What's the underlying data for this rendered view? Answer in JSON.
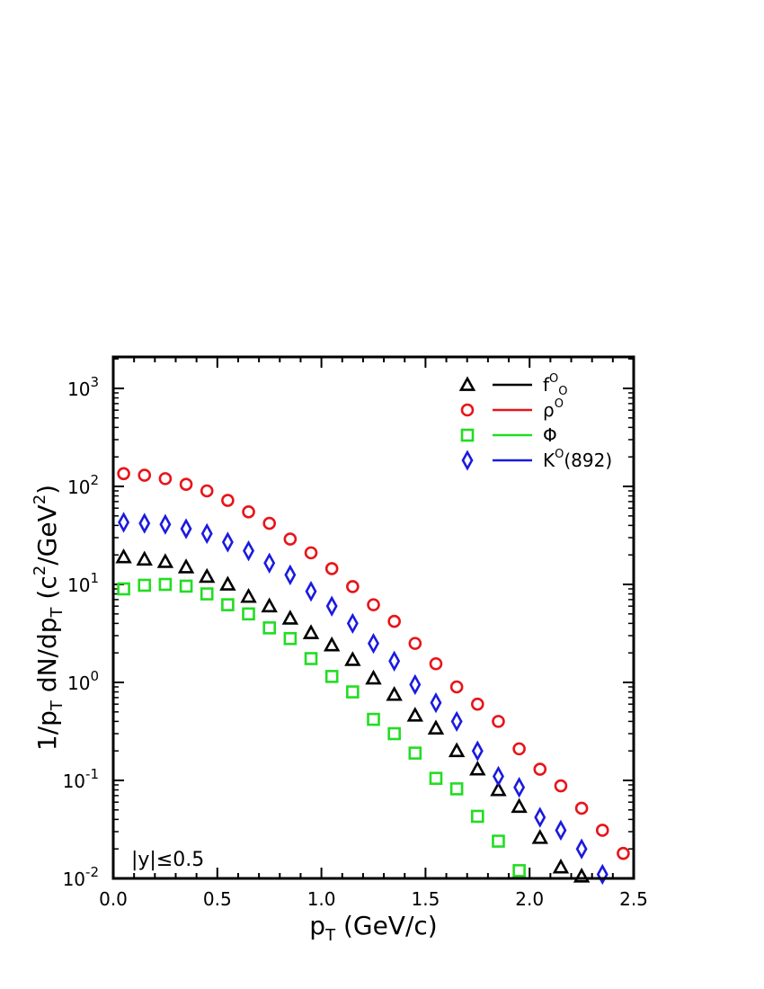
{
  "chart_data": {
    "type": "scatter",
    "xlabel": "p_T (GeV/c)",
    "ylabel": "1/p_T dN/dp_T (c^2/GeV^2)",
    "xlim": [
      0,
      2.5
    ],
    "ylim": [
      0.01,
      2000
    ],
    "yscale": "log",
    "x_ticks": [
      "0.0",
      "0.5",
      "1.0",
      "1.5",
      "2.0",
      "2.5"
    ],
    "y_ticks": [
      {
        "base": "10",
        "exp": "-2"
      },
      {
        "base": "10",
        "exp": "-1"
      },
      {
        "base": "10",
        "exp": "0"
      },
      {
        "base": "10",
        "exp": "1"
      },
      {
        "base": "10",
        "exp": "2"
      },
      {
        "base": "10",
        "exp": "3"
      }
    ],
    "annotation": "|y|≤0.5",
    "legend_position": "top-right",
    "series": [
      {
        "name": "f0",
        "name_base": "f",
        "name_sup": "O",
        "name_sub": "O",
        "marker": "triangle",
        "color": "#000000",
        "x": [
          0.05,
          0.15,
          0.25,
          0.35,
          0.45,
          0.55,
          0.65,
          0.75,
          0.85,
          0.95,
          1.05,
          1.15,
          1.25,
          1.35,
          1.45,
          1.55,
          1.65,
          1.75,
          1.85,
          1.95,
          2.05,
          2.15,
          2.25
        ],
        "y": [
          19,
          18,
          17,
          15,
          12,
          10,
          7.5,
          6,
          4.5,
          3.2,
          2.4,
          1.7,
          1.1,
          0.75,
          0.46,
          0.34,
          0.2,
          0.13,
          0.08,
          0.054,
          0.026,
          0.013,
          0.0105
        ]
      },
      {
        "name": "ρ0",
        "name_base": "ρ",
        "name_sup": "O",
        "name_sub": "",
        "marker": "circle",
        "color": "#e8141a",
        "x": [
          0.05,
          0.15,
          0.25,
          0.35,
          0.45,
          0.55,
          0.65,
          0.75,
          0.85,
          0.95,
          1.05,
          1.15,
          1.25,
          1.35,
          1.45,
          1.55,
          1.65,
          1.75,
          1.85,
          1.95,
          2.05,
          2.15,
          2.25,
          2.35,
          2.45
        ],
        "y": [
          135,
          130,
          120,
          105,
          90,
          72,
          55,
          42,
          29,
          21,
          14.5,
          9.5,
          6.2,
          4.2,
          2.5,
          1.55,
          0.9,
          0.6,
          0.4,
          0.21,
          0.13,
          0.088,
          0.052,
          0.031,
          0.018
        ]
      },
      {
        "name": "Φ",
        "name_base": "Φ",
        "name_sup": "",
        "name_sub": "",
        "marker": "square",
        "color": "#22dd22",
        "x": [
          0.05,
          0.15,
          0.25,
          0.35,
          0.45,
          0.55,
          0.65,
          0.75,
          0.85,
          0.95,
          1.05,
          1.15,
          1.25,
          1.35,
          1.45,
          1.55,
          1.65,
          1.75,
          1.85,
          1.95
        ],
        "y": [
          9,
          9.8,
          10,
          9.6,
          8,
          6.2,
          5,
          3.6,
          2.8,
          1.75,
          1.15,
          0.8,
          0.42,
          0.3,
          0.19,
          0.105,
          0.082,
          0.043,
          0.024,
          0.012
        ]
      },
      {
        "name": "K0(892)",
        "name_base": "K",
        "name_sup": "O",
        "name_sub": "",
        "name_suffix": "(892)",
        "marker": "diamond",
        "color": "#1a1ae0",
        "x": [
          0.05,
          0.15,
          0.25,
          0.35,
          0.45,
          0.55,
          0.65,
          0.75,
          0.85,
          0.95,
          1.05,
          1.15,
          1.25,
          1.35,
          1.45,
          1.55,
          1.65,
          1.75,
          1.85,
          1.95,
          2.05,
          2.15,
          2.25,
          2.35
        ],
        "y": [
          43,
          42,
          41,
          37,
          33,
          27,
          22,
          16.5,
          12.5,
          8.5,
          6,
          4,
          2.5,
          1.65,
          0.95,
          0.62,
          0.4,
          0.2,
          0.11,
          0.085,
          0.042,
          0.031,
          0.02,
          0.011
        ]
      }
    ]
  }
}
